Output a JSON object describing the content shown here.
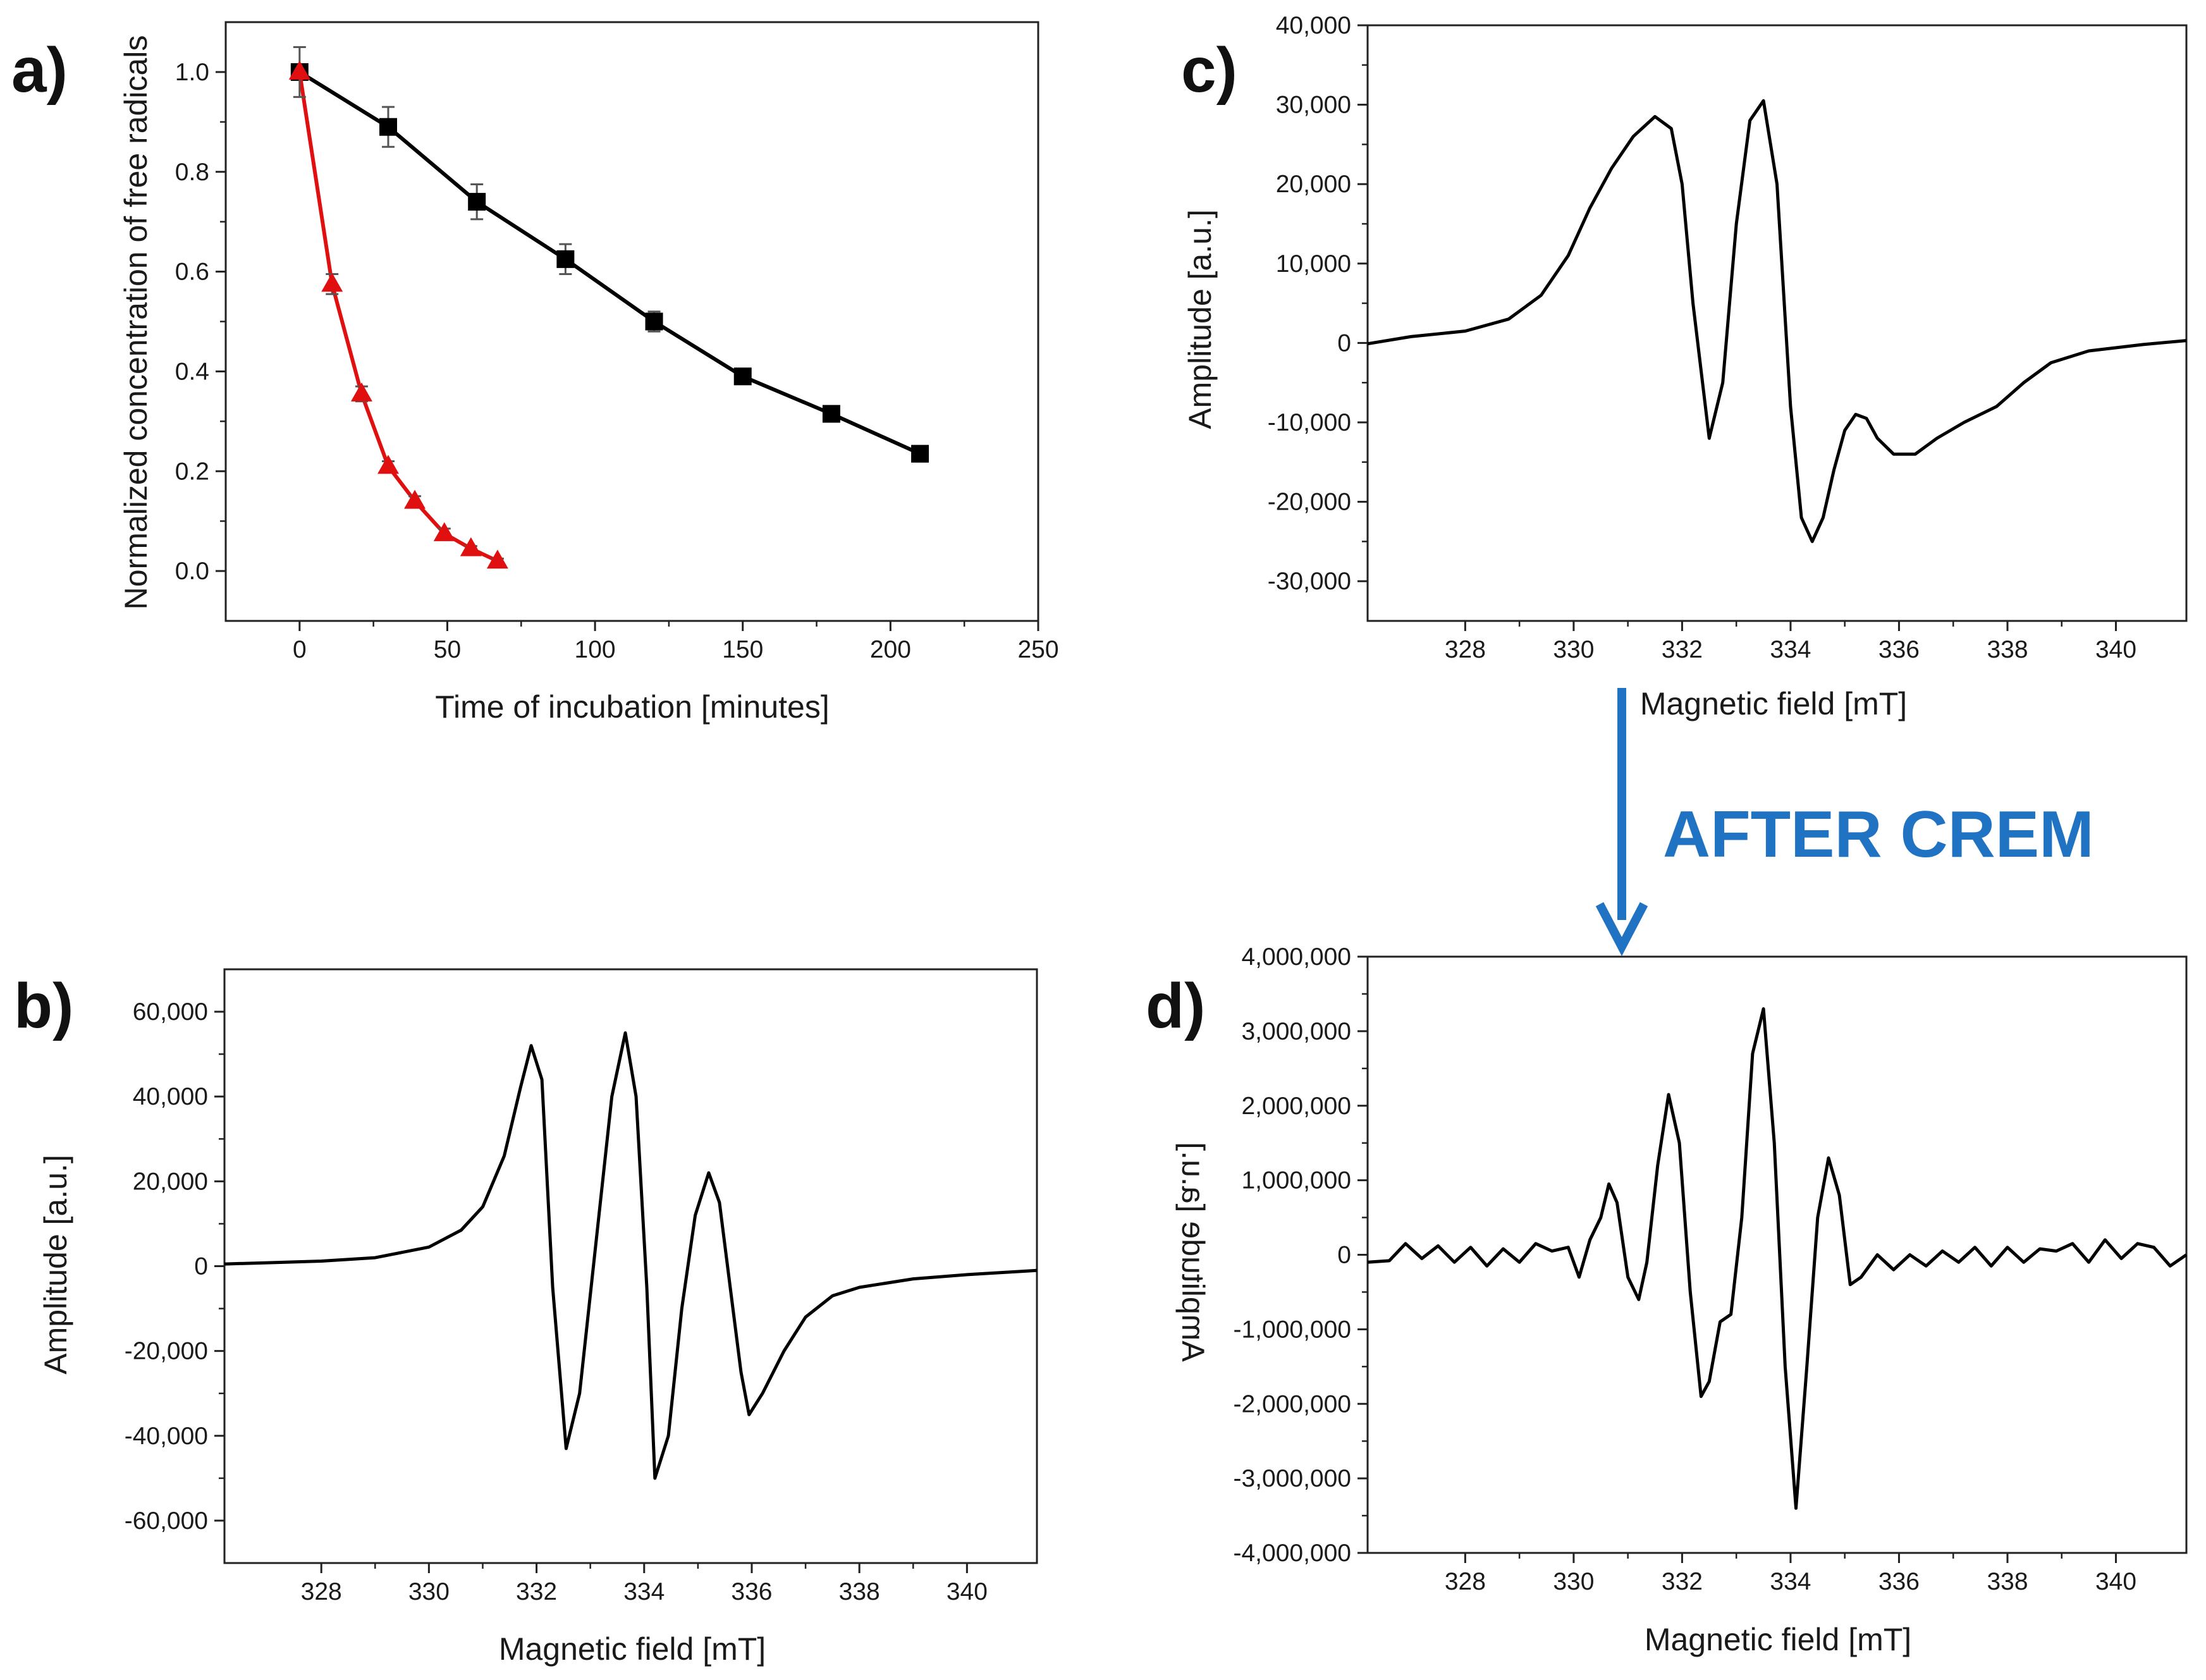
{
  "figure": {
    "annotation": "AFTER CREM",
    "arrow_color": "#1f73c2"
  },
  "chart_data": [
    {
      "id": "a",
      "panel_label": "a)",
      "type": "line",
      "xlabel": "Time of incubation [minutes]",
      "ylabel": "Normalized concentration of free radicals",
      "xlim": [
        -25,
        250
      ],
      "ylim": [
        -0.1,
        1.1
      ],
      "xticks": [
        0,
        50,
        100,
        150,
        200,
        250
      ],
      "xtick_labels": [
        "0",
        "50",
        "100",
        "150",
        "200",
        "250"
      ],
      "yticks": [
        0.0,
        0.2,
        0.4,
        0.6,
        0.8,
        1.0
      ],
      "ytick_labels": [
        "0.0",
        "0.2",
        "0.4",
        "0.6",
        "0.8",
        "1.0"
      ],
      "series": [
        {
          "name": "black-squares",
          "color": "#000000",
          "marker": "square",
          "x": [
            0,
            30,
            60,
            90,
            120,
            150,
            180,
            210
          ],
          "y": [
            1.0,
            0.89,
            0.74,
            0.625,
            0.5,
            0.39,
            0.315,
            0.235
          ],
          "err": [
            0.0,
            0.04,
            0.035,
            0.03,
            0.02,
            0.015,
            0.01,
            0.01
          ]
        },
        {
          "name": "red-triangles",
          "color": "#e01010",
          "marker": "triangle",
          "x": [
            0,
            11,
            21,
            30,
            39,
            49,
            58,
            67
          ],
          "y": [
            1.0,
            0.575,
            0.355,
            0.21,
            0.14,
            0.075,
            0.045,
            0.02
          ],
          "err": [
            0.05,
            0.02,
            0.015,
            0.01,
            0.01,
            0.01,
            0.005,
            0.005
          ]
        }
      ]
    },
    {
      "id": "b",
      "panel_label": "b)",
      "type": "line",
      "xlabel": "Magnetic field [mT]",
      "ylabel": "Amplitude [a.u.]",
      "xlim": [
        326.2,
        341.3
      ],
      "ylim": [
        -70000,
        70000
      ],
      "xticks": [
        328,
        330,
        332,
        334,
        336,
        338,
        340
      ],
      "xtick_labels": [
        "328",
        "330",
        "332",
        "334",
        "336",
        "338",
        "340"
      ],
      "yticks": [
        -60000,
        -40000,
        -20000,
        0,
        20000,
        40000,
        60000
      ],
      "ytick_labels": [
        "-60,000",
        "-40,000",
        "-20,000",
        "0",
        "20,000",
        "40,000",
        "60,000"
      ],
      "series": [
        {
          "name": "epr-spectrum",
          "color": "#000000",
          "x": [
            326.2,
            327.0,
            328.0,
            329.0,
            330.0,
            330.6,
            331.0,
            331.4,
            331.7,
            331.9,
            332.1,
            332.3,
            332.55,
            332.8,
            333.1,
            333.4,
            333.65,
            333.85,
            334.05,
            334.2,
            334.45,
            334.7,
            334.95,
            335.2,
            335.4,
            335.6,
            335.8,
            335.95,
            336.2,
            336.6,
            337.0,
            337.5,
            338.0,
            339.0,
            340.0,
            341.3
          ],
          "y": [
            500,
            800,
            1200,
            2000,
            4500,
            8500,
            14000,
            26000,
            42000,
            52000,
            44000,
            -5000,
            -43000,
            -30000,
            5000,
            40000,
            55000,
            40000,
            -5000,
            -50000,
            -40000,
            -10000,
            12000,
            22000,
            15000,
            -5000,
            -25000,
            -35000,
            -30000,
            -20000,
            -12000,
            -7000,
            -5000,
            -3000,
            -2000,
            -1000
          ]
        }
      ]
    },
    {
      "id": "c",
      "panel_label": "c)",
      "type": "line",
      "xlabel": "Magnetic field [mT]",
      "ylabel": "Amplitude [a.u.]",
      "xlim": [
        326.2,
        341.3
      ],
      "ylim": [
        -35000,
        40000
      ],
      "xticks": [
        328,
        330,
        332,
        334,
        336,
        338,
        340
      ],
      "xtick_labels": [
        "328",
        "330",
        "332",
        "334",
        "336",
        "338",
        "340"
      ],
      "yticks": [
        -30000,
        -20000,
        -10000,
        0,
        10000,
        20000,
        30000,
        40000
      ],
      "ytick_labels": [
        "-30,000",
        "-20,000",
        "-10,000",
        "0",
        "10,000",
        "20,000",
        "30,000",
        "40,000"
      ],
      "series": [
        {
          "name": "epr-spectrum",
          "color": "#000000",
          "x": [
            326.2,
            327.0,
            328.0,
            328.8,
            329.4,
            329.9,
            330.3,
            330.7,
            331.1,
            331.5,
            331.8,
            332.0,
            332.2,
            332.5,
            332.75,
            333.0,
            333.25,
            333.5,
            333.75,
            334.0,
            334.2,
            334.4,
            334.6,
            334.8,
            335.0,
            335.2,
            335.4,
            335.6,
            335.9,
            336.3,
            336.7,
            337.2,
            337.8,
            338.3,
            338.8,
            339.5,
            340.5,
            341.3
          ],
          "y": [
            -100,
            800,
            1500,
            3000,
            6000,
            11000,
            17000,
            22000,
            26000,
            28500,
            27000,
            20000,
            5000,
            -12000,
            -5000,
            15000,
            28000,
            30500,
            20000,
            -8000,
            -22000,
            -25000,
            -22000,
            -16000,
            -11000,
            -9000,
            -9500,
            -12000,
            -14000,
            -14000,
            -12000,
            -10000,
            -8000,
            -5000,
            -2500,
            -1000,
            -200,
            300
          ]
        }
      ]
    },
    {
      "id": "d",
      "panel_label": "d)",
      "type": "line",
      "xlabel": "Magnetic field [mT]",
      "ylabel": "Amplitude [a.u.]",
      "xlim": [
        326.2,
        341.3
      ],
      "ylim": [
        -4000000,
        4000000
      ],
      "xticks": [
        328,
        330,
        332,
        334,
        336,
        338,
        340
      ],
      "xtick_labels": [
        "328",
        "330",
        "332",
        "334",
        "336",
        "338",
        "340"
      ],
      "yticks": [
        -4000000,
        -3000000,
        -2000000,
        -1000000,
        0,
        1000000,
        2000000,
        3000000,
        4000000
      ],
      "ytick_labels": [
        "-4,000,000",
        "-3,000,000",
        "-2,000,000",
        "-1,000,000",
        "0",
        "1,000,000",
        "2,000,000",
        "3,000,000",
        "4,000,000"
      ],
      "series": [
        {
          "name": "epr-spectrum",
          "color": "#000000",
          "x": [
            326.2,
            326.6,
            326.9,
            327.2,
            327.5,
            327.8,
            328.1,
            328.4,
            328.7,
            329.0,
            329.3,
            329.6,
            329.9,
            330.1,
            330.3,
            330.5,
            330.65,
            330.8,
            331.0,
            331.2,
            331.35,
            331.55,
            331.75,
            331.95,
            332.15,
            332.35,
            332.5,
            332.7,
            332.9,
            333.1,
            333.3,
            333.5,
            333.7,
            333.9,
            334.1,
            334.3,
            334.5,
            334.7,
            334.9,
            335.1,
            335.3,
            335.6,
            335.9,
            336.2,
            336.5,
            336.8,
            337.1,
            337.4,
            337.7,
            338.0,
            338.3,
            338.6,
            338.9,
            339.2,
            339.5,
            339.8,
            340.1,
            340.4,
            340.7,
            341.0,
            341.3
          ],
          "y": [
            -100000,
            -80000,
            150000,
            -50000,
            120000,
            -100000,
            100000,
            -150000,
            80000,
            -100000,
            150000,
            50000,
            100000,
            -300000,
            200000,
            500000,
            950000,
            700000,
            -300000,
            -600000,
            -100000,
            1200000,
            2150000,
            1500000,
            -500000,
            -1900000,
            -1700000,
            -900000,
            -800000,
            500000,
            2700000,
            3300000,
            1500000,
            -1500000,
            -3400000,
            -1500000,
            500000,
            1300000,
            800000,
            -400000,
            -300000,
            0,
            -200000,
            0,
            -150000,
            50000,
            -100000,
            100000,
            -150000,
            100000,
            -100000,
            80000,
            50000,
            150000,
            -100000,
            200000,
            -50000,
            150000,
            100000,
            -150000,
            0
          ]
        }
      ]
    }
  ]
}
